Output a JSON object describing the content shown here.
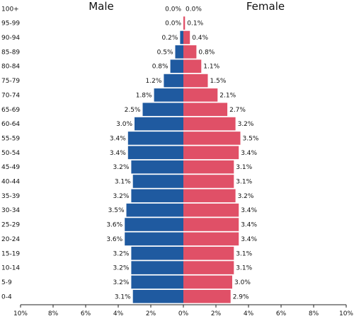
{
  "chart_data": {
    "type": "bar",
    "orientation": "horizontal-butterfly",
    "left_title": "Male",
    "right_title": "Female",
    "categories": [
      "100+",
      "95-99",
      "90-94",
      "85-89",
      "80-84",
      "75-79",
      "70-74",
      "65-69",
      "60-64",
      "55-59",
      "50-54",
      "45-49",
      "40-44",
      "35-39",
      "30-34",
      "25-29",
      "20-24",
      "15-19",
      "10-14",
      "5-9",
      "0-4"
    ],
    "series": [
      {
        "name": "Male",
        "color": "#1f5aa0",
        "values": [
          0.0,
          0.0,
          0.2,
          0.5,
          0.8,
          1.2,
          1.8,
          2.5,
          3.0,
          3.4,
          3.4,
          3.2,
          3.1,
          3.2,
          3.5,
          3.6,
          3.6,
          3.2,
          3.2,
          3.2,
          3.1
        ],
        "labels": [
          "0.0%",
          "0.0%",
          "0.2%",
          "0.5%",
          "0.8%",
          "1.2%",
          "1.8%",
          "2.5%",
          "3.0%",
          "3.4%",
          "3.4%",
          "3.2%",
          "3.1%",
          "3.2%",
          "3.5%",
          "3.6%",
          "3.6%",
          "3.2%",
          "3.2%",
          "3.2%",
          "3.1%"
        ]
      },
      {
        "name": "Female",
        "color": "#e05067",
        "values": [
          0.0,
          0.1,
          0.4,
          0.8,
          1.1,
          1.5,
          2.1,
          2.7,
          3.2,
          3.5,
          3.4,
          3.1,
          3.1,
          3.2,
          3.4,
          3.4,
          3.4,
          3.1,
          3.1,
          3.0,
          2.9
        ],
        "labels": [
          "0.0%",
          "0.1%",
          "0.4%",
          "0.8%",
          "1.1%",
          "1.5%",
          "2.1%",
          "2.7%",
          "3.2%",
          "3.5%",
          "3.4%",
          "3.1%",
          "3.1%",
          "3.2%",
          "3.4%",
          "3.4%",
          "3.4%",
          "3.1%",
          "3.1%",
          "3.0%",
          "2.9%"
        ]
      }
    ],
    "x_ticks": [
      "10%",
      "8%",
      "6%",
      "4%",
      "2%",
      "0%",
      "2%",
      "4%",
      "6%",
      "8%",
      "10%"
    ],
    "x_tick_values": [
      -10,
      -8,
      -6,
      -4,
      -2,
      0,
      2,
      4,
      6,
      8,
      10
    ],
    "xlim": [
      -10,
      10
    ],
    "grid": false,
    "legend": "none"
  }
}
